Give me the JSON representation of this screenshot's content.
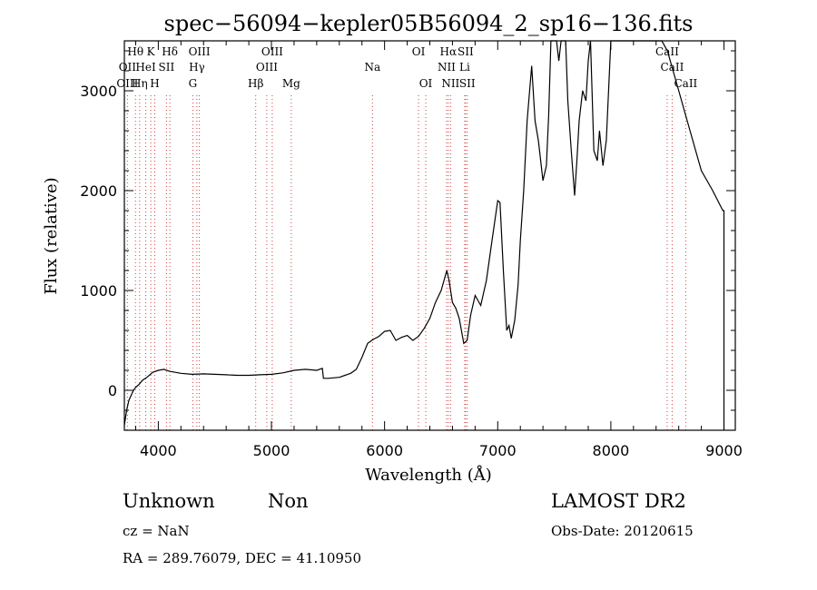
{
  "chart_data": {
    "type": "line",
    "title": "spec−56094−kepler05B56094_2_sp16−136.fits",
    "xlabel": "Wavelength (Å)",
    "ylabel": "Flux (relative)",
    "xlim": [
      3700,
      9100
    ],
    "ylim": [
      -400,
      3500
    ],
    "xticks": [
      4000,
      5000,
      6000,
      7000,
      8000,
      9000
    ],
    "yticks": [
      0,
      1000,
      2000,
      3000
    ],
    "grid": false,
    "legend": "none",
    "series": [
      {
        "color": "#000000",
        "x": [
          3700,
          3720,
          3740,
          3760,
          3780,
          3800,
          3830,
          3860,
          3900,
          3950,
          4000,
          4050,
          4100,
          4150,
          4200,
          4300,
          4400,
          4500,
          4600,
          4700,
          4800,
          4900,
          5000,
          5100,
          5200,
          5300,
          5400,
          5450,
          5460,
          5500,
          5600,
          5700,
          5750,
          5800,
          5850,
          5900,
          5950,
          6000,
          6050,
          6100,
          6150,
          6200,
          6250,
          6300,
          6350,
          6400,
          6450,
          6500,
          6550,
          6570,
          6600,
          6630,
          6660,
          6700,
          6730,
          6760,
          6800,
          6850,
          6900,
          6950,
          7000,
          7020,
          7050,
          7080,
          7100,
          7120,
          7150,
          7180,
          7200,
          7230,
          7260,
          7300,
          7330,
          7360,
          7400,
          7430,
          7450,
          7470,
          7500,
          7520,
          7540,
          7560,
          7580,
          7600,
          7620,
          7650,
          7680,
          7700,
          7720,
          7750,
          7780,
          7800,
          7820,
          7850,
          7880,
          7900,
          7930,
          7960,
          8000,
          8050,
          8100,
          8200,
          8300,
          8400,
          8450,
          8500,
          8600,
          8700,
          8800,
          8900,
          8990,
          9000
        ],
        "y": [
          -350,
          -200,
          -100,
          -50,
          0,
          30,
          60,
          100,
          130,
          180,
          200,
          210,
          190,
          180,
          170,
          160,
          165,
          160,
          155,
          150,
          150,
          155,
          160,
          175,
          200,
          210,
          200,
          220,
          120,
          120,
          130,
          170,
          210,
          330,
          470,
          510,
          540,
          590,
          600,
          500,
          530,
          550,
          500,
          540,
          620,
          720,
          880,
          1000,
          1200,
          1100,
          880,
          820,
          720,
          470,
          500,
          750,
          950,
          850,
          1100,
          1500,
          1900,
          1880,
          1200,
          600,
          650,
          520,
          700,
          1050,
          1500,
          2000,
          2700,
          3250,
          2700,
          2500,
          2100,
          2250,
          2750,
          3500,
          3500,
          3500,
          3300,
          3500,
          3500,
          3500,
          2900,
          2400,
          1950,
          2300,
          2700,
          3000,
          2900,
          3300,
          3500,
          2400,
          2300,
          2600,
          2250,
          2500,
          3500,
          3500,
          3500,
          3500,
          3500,
          3500,
          3500,
          3400,
          3000,
          2600,
          2200,
          2000,
          1800,
          1800
        ]
      }
    ],
    "emission_lines": [
      {
        "label": "Hθ",
        "x": 3798,
        "row": 1
      },
      {
        "label": "OII",
        "x": 3727,
        "row": 2
      },
      {
        "label": "OIII",
        "x": 3727,
        "row": 3
      },
      {
        "label": "Hη",
        "x": 3835,
        "row": 3
      },
      {
        "label": "K",
        "x": 3934,
        "row": 1
      },
      {
        "label": "HeI",
        "x": 3889,
        "row": 2
      },
      {
        "label": "SII",
        "x": 4072,
        "row": 2
      },
      {
        "label": "H",
        "x": 3969,
        "row": 3
      },
      {
        "label": "Hδ",
        "x": 4102,
        "row": 1
      },
      {
        "label": "OIII",
        "x": 4363,
        "row": 1
      },
      {
        "label": "Hγ",
        "x": 4341,
        "row": 2
      },
      {
        "label": "G",
        "x": 4305,
        "row": 3
      },
      {
        "label": "Hβ",
        "x": 4861,
        "row": 3
      },
      {
        "label": "OIII",
        "x": 5007,
        "row": 1
      },
      {
        "label": "OIII",
        "x": 4959,
        "row": 2
      },
      {
        "label": "Mg",
        "x": 5175,
        "row": 3
      },
      {
        "label": "Na",
        "x": 5893,
        "row": 2
      },
      {
        "label": "OI",
        "x": 6300,
        "row": 1
      },
      {
        "label": "OI",
        "x": 6364,
        "row": 3
      },
      {
        "label": "Hα",
        "x": 6563,
        "row": 1
      },
      {
        "label": "SII",
        "x": 6716,
        "row": 1
      },
      {
        "label": "NII",
        "x": 6548,
        "row": 2
      },
      {
        "label": "Li",
        "x": 6708,
        "row": 2
      },
      {
        "label": "NII",
        "x": 6583,
        "row": 3
      },
      {
        "label": "SII",
        "x": 6731,
        "row": 3
      },
      {
        "label": "CaII",
        "x": 8498,
        "row": 1
      },
      {
        "label": "CaII",
        "x": 8542,
        "row": 2
      },
      {
        "label": "CaII",
        "x": 8662,
        "row": 3
      }
    ]
  },
  "info": {
    "class": "Unknown",
    "subclass": "Non",
    "survey": "LAMOST DR2",
    "cz": "cz = NaN",
    "obs_date": "Obs-Date: 20120615",
    "coords": "RA = 289.76079, DEC =  41.10950"
  },
  "colors": {
    "line_marker": "#d04040",
    "spectrum": "#000000"
  }
}
